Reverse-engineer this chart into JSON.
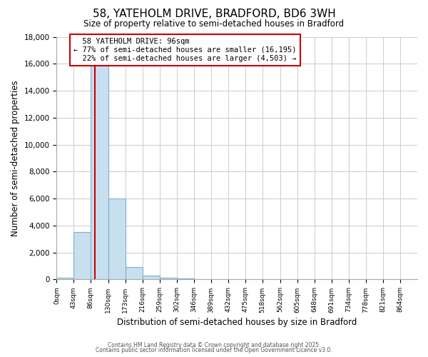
{
  "title": "58, YATEHOLM DRIVE, BRADFORD, BD6 3WH",
  "subtitle": "Size of property relative to semi-detached houses in Bradford",
  "xlabel": "Distribution of semi-detached houses by size in Bradford",
  "ylabel": "Number of semi-detached properties",
  "property_label": "58 YATEHOLM DRIVE: 96sqm",
  "annotation_line1": "← 77% of semi-detached houses are smaller (16,195)",
  "annotation_line2": "22% of semi-detached houses are larger (4,503) →",
  "bin_edges": [
    0,
    43,
    86,
    130,
    173,
    216,
    259,
    302,
    346,
    389,
    432,
    475,
    518,
    562,
    605,
    648,
    691,
    734,
    778,
    821,
    864,
    907
  ],
  "bin_labels": [
    "0sqm",
    "43sqm",
    "86sqm",
    "130sqm",
    "173sqm",
    "216sqm",
    "259sqm",
    "302sqm",
    "346sqm",
    "389sqm",
    "432sqm",
    "475sqm",
    "518sqm",
    "562sqm",
    "605sqm",
    "648sqm",
    "691sqm",
    "734sqm",
    "778sqm",
    "821sqm",
    "864sqm"
  ],
  "counts": [
    150,
    3500,
    16500,
    6000,
    900,
    300,
    150,
    80,
    0,
    0,
    0,
    0,
    0,
    0,
    0,
    0,
    0,
    0,
    0,
    0,
    0
  ],
  "bar_color": "#c8dff0",
  "bar_edge_color": "#7db0d0",
  "vline_color": "#cc0000",
  "vline_pos": 96,
  "annotation_box_color": "#ffffff",
  "annotation_box_edge": "#cc0000",
  "background_color": "#ffffff",
  "grid_color": "#cccccc",
  "ylim": [
    0,
    18000
  ],
  "yticks": [
    0,
    2000,
    4000,
    6000,
    8000,
    10000,
    12000,
    14000,
    16000,
    18000
  ],
  "footer1": "Contains HM Land Registry data © Crown copyright and database right 2025.",
  "footer2": "Contains public sector information licensed under the Open Government Licence v3.0."
}
